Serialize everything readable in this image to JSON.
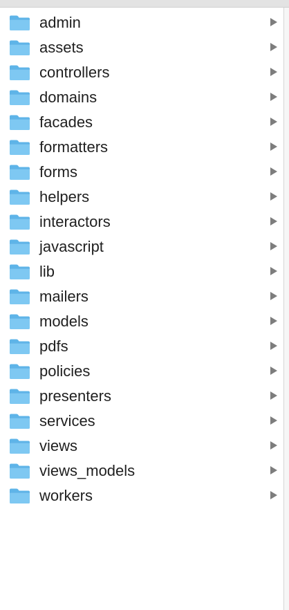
{
  "folders": [
    {
      "name": "admin",
      "icon": "folder-icon"
    },
    {
      "name": "assets",
      "icon": "folder-icon"
    },
    {
      "name": "controllers",
      "icon": "folder-icon"
    },
    {
      "name": "domains",
      "icon": "folder-icon"
    },
    {
      "name": "facades",
      "icon": "folder-icon"
    },
    {
      "name": "formatters",
      "icon": "folder-icon"
    },
    {
      "name": "forms",
      "icon": "folder-icon"
    },
    {
      "name": "helpers",
      "icon": "folder-icon"
    },
    {
      "name": "interactors",
      "icon": "folder-icon"
    },
    {
      "name": "javascript",
      "icon": "folder-icon"
    },
    {
      "name": "lib",
      "icon": "folder-icon"
    },
    {
      "name": "mailers",
      "icon": "folder-icon"
    },
    {
      "name": "models",
      "icon": "folder-icon"
    },
    {
      "name": "pdfs",
      "icon": "folder-icon"
    },
    {
      "name": "policies",
      "icon": "folder-icon"
    },
    {
      "name": "presenters",
      "icon": "folder-icon"
    },
    {
      "name": "services",
      "icon": "folder-icon"
    },
    {
      "name": "views",
      "icon": "folder-icon"
    },
    {
      "name": "views_models",
      "icon": "folder-icon"
    },
    {
      "name": "workers",
      "icon": "folder-icon"
    }
  ],
  "colors": {
    "folder_body": "#7ec8f2",
    "folder_tab": "#5eb4e8",
    "folder_edge": "#4aa3dc",
    "text": "#1f1f1f",
    "chevron": "#7d7d7d"
  }
}
